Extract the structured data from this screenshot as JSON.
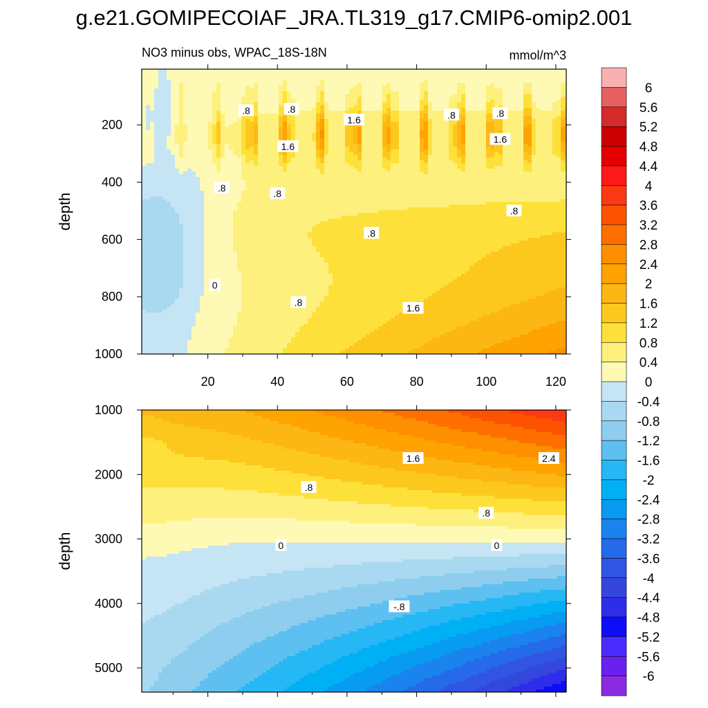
{
  "title": "g.e21.GOMIPECOIAF_JRA.TL319_g17.CMIP6-omip2.001",
  "chart_data": [
    {
      "type": "heatmap",
      "panel": "upper",
      "left_title": "NO3 minus obs, WPAC_18S-18N",
      "right_title": "mmol/m^3",
      "ylabel": "depth",
      "xlabel": "",
      "xlim": [
        1,
        123
      ],
      "ylim": [
        1000,
        5
      ],
      "x_ticks": [
        "20",
        "40",
        "60",
        "80",
        "100",
        "120"
      ],
      "y_ticks": [
        "200",
        "400",
        "600",
        "800",
        "1000"
      ],
      "contour_labels": [
        {
          "text": ".8",
          "x": 31,
          "y": 150
        },
        {
          "text": ".8",
          "x": 44,
          "y": 145
        },
        {
          "text": "1.6",
          "x": 62,
          "y": 182
        },
        {
          "text": "1.6",
          "x": 43,
          "y": 275
        },
        {
          "text": ".8",
          "x": 90,
          "y": 165
        },
        {
          "text": ".8",
          "x": 104,
          "y": 160
        },
        {
          "text": "1.6",
          "x": 104,
          "y": 250
        },
        {
          "text": ".8",
          "x": 24,
          "y": 420
        },
        {
          "text": ".8",
          "x": 40,
          "y": 440
        },
        {
          "text": ".8",
          "x": 108,
          "y": 500
        },
        {
          "text": ".8",
          "x": 67,
          "y": 578
        },
        {
          "text": "0",
          "x": 22,
          "y": 760
        },
        {
          "text": ".8",
          "x": 46,
          "y": 820
        },
        {
          "text": "1.6",
          "x": 79,
          "y": 840
        }
      ]
    },
    {
      "type": "heatmap",
      "panel": "lower",
      "ylabel": "depth",
      "xlabel": "",
      "xlim": [
        1,
        123
      ],
      "ylim": [
        1000,
        5375
      ],
      "x_ticks": [
        "20",
        "40",
        "60",
        "80",
        "100",
        "120"
      ],
      "y_ticks": [
        "1000",
        "2000",
        "3000",
        "4000",
        "5000"
      ],
      "contour_labels": [
        {
          "text": "1.6",
          "x": 79,
          "y": 1750
        },
        {
          "text": "2.4",
          "x": 118,
          "y": 1750
        },
        {
          "text": ".8",
          "x": 49,
          "y": 2200
        },
        {
          "text": ".8",
          "x": 100,
          "y": 2600
        },
        {
          "text": "0",
          "x": 41,
          "y": 3100
        },
        {
          "text": "0",
          "x": 103,
          "y": 3100
        },
        {
          "text": "-.8",
          "x": 75,
          "y": 4050
        }
      ]
    },
    {
      "type": "colorbar",
      "levels": [
        "6",
        "5.6",
        "5.2",
        "4.8",
        "4.4",
        "4",
        "3.6",
        "3.2",
        "2.8",
        "2.4",
        "2",
        "1.6",
        "1.2",
        "0.8",
        "0.4",
        "0",
        "-0.4",
        "-0.8",
        "-1.2",
        "-1.6",
        "-2",
        "-2.4",
        "-2.8",
        "-3.2",
        "-3.6",
        "-4",
        "-4.4",
        "-4.8",
        "-5.2",
        "-5.6",
        "-6"
      ],
      "colors": [
        "#f9b0b0",
        "#e76060",
        "#d42b2b",
        "#cc0000",
        "#e40000",
        "#ff1a1a",
        "#fa3a12",
        "#fd5200",
        "#fe6f00",
        "#fe8f00",
        "#fea300",
        "#fdb715",
        "#fdc81e",
        "#fde13a",
        "#fdf07d",
        "#fef9b4",
        "#c5e5f4",
        "#a9d9f1",
        "#8ecdee",
        "#5ec0f1",
        "#25b8f4",
        "#00b0f5",
        "#079bf1",
        "#1a83ee",
        "#256ae8",
        "#3155e3",
        "#3447dc",
        "#2e2eea",
        "#0d0df8",
        "#4a2dfc",
        "#6a21f0",
        "#8a2be2"
      ]
    }
  ]
}
